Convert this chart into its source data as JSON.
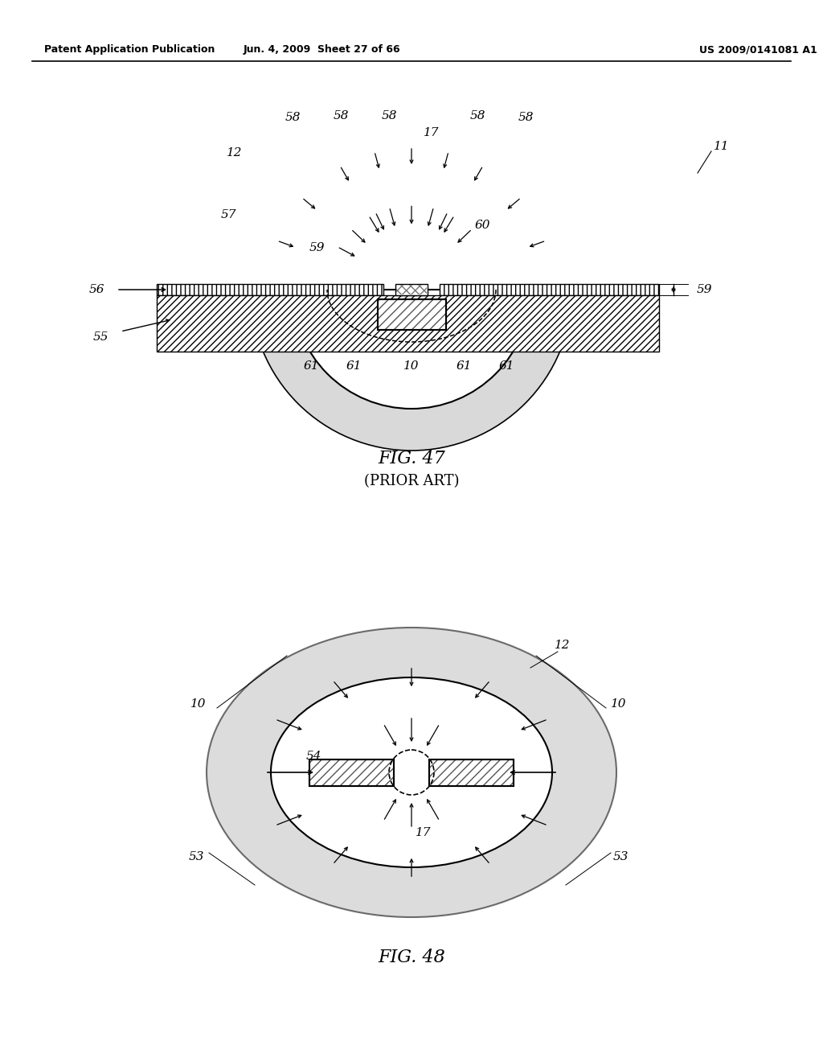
{
  "header_left": "Patent Application Publication",
  "header_mid": "Jun. 4, 2009  Sheet 27 of 66",
  "header_right": "US 2009/0141081 A1",
  "fig47_title": "FIG. 47",
  "fig47_subtitle": "(PRIOR ART)",
  "fig48_title": "FIG. 48",
  "bg_color": "#ffffff",
  "stipple_color": "#c0c0c0",
  "hatch_color": "#888888"
}
